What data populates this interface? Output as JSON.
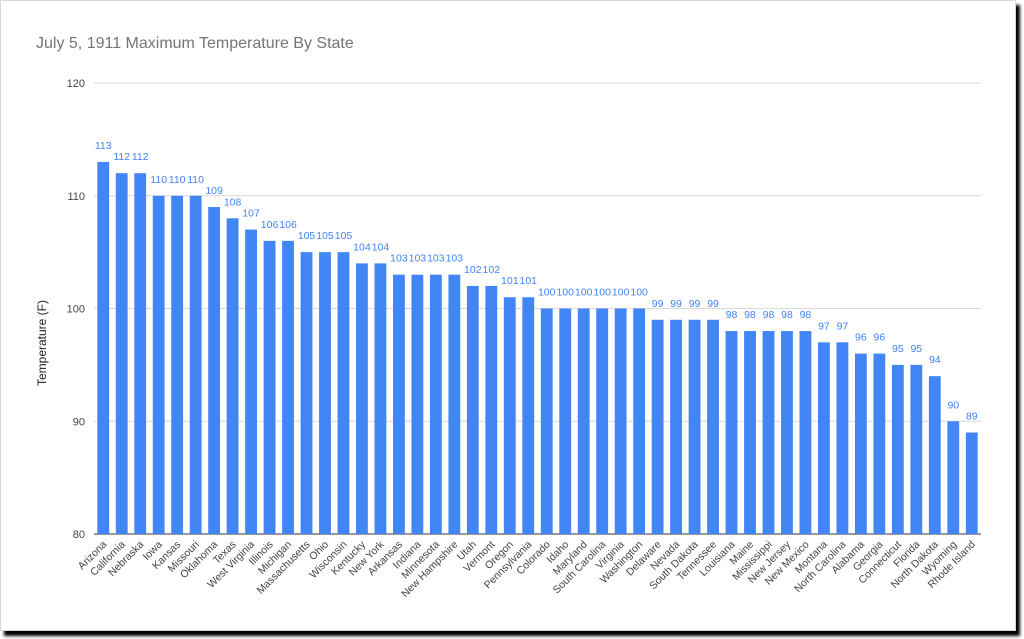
{
  "chart_data": {
    "type": "bar",
    "title": "July 5, 1911 Maximum Temperature By State",
    "xlabel": "",
    "ylabel": "Temperature (F)",
    "ylim": [
      80,
      120
    ],
    "yticks": [
      80,
      90,
      100,
      110,
      120
    ],
    "grid": true,
    "bar_color": "#4285f4",
    "label_color": "#4285f4",
    "categories": [
      "Arizona",
      "California",
      "Nebraska",
      "Iowa",
      "Kansas",
      "Missouri",
      "Oklahoma",
      "Texas",
      "West Virginia",
      "Illinois",
      "Michigan",
      "Massachusetts",
      "Ohio",
      "Wisconsin",
      "Kentucky",
      "New York",
      "Arkansas",
      "Indiana",
      "Minnesota",
      "New Hampshire",
      "Utah",
      "Vermont",
      "Oregon",
      "Pennsylvania",
      "Colorado",
      "Idaho",
      "Maryland",
      "South Carolina",
      "Virginia",
      "Washington",
      "Delaware",
      "Nevada",
      "South Dakota",
      "Tennessee",
      "Louisiana",
      "Maine",
      "Mississippi",
      "New Jersey",
      "New Mexico",
      "Montana",
      "North Carolina",
      "Alabama",
      "Georgia",
      "Connecticut",
      "Florida",
      "North Dakota",
      "Wyoming",
      "Rhode Island"
    ],
    "values": [
      113,
      112,
      112,
      110,
      110,
      110,
      109,
      108,
      107,
      106,
      106,
      105,
      105,
      105,
      104,
      104,
      103,
      103,
      103,
      103,
      102,
      102,
      101,
      101,
      100,
      100,
      100,
      100,
      100,
      100,
      99,
      99,
      99,
      99,
      98,
      98,
      98,
      98,
      98,
      97,
      97,
      96,
      96,
      95,
      95,
      94,
      90,
      89
    ]
  }
}
